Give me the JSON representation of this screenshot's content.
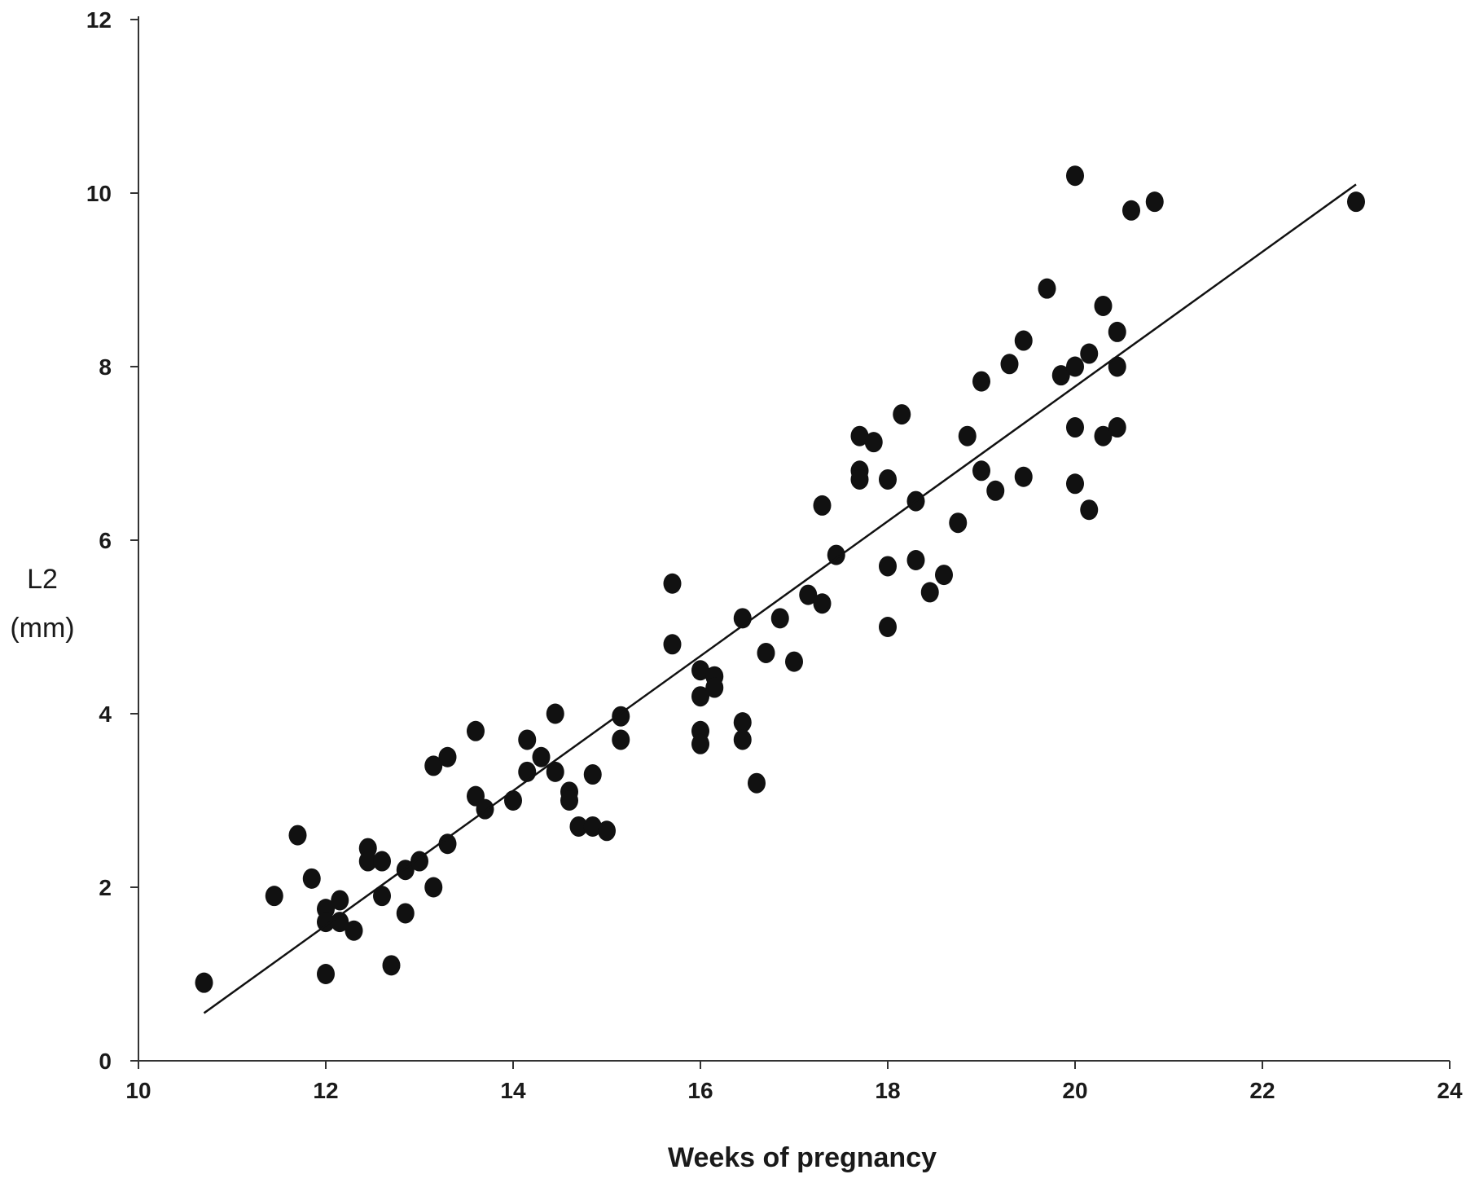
{
  "chart_data": {
    "type": "scatter",
    "title": "",
    "xlabel": "Weeks of pregnancy",
    "ylabel": [
      "L2",
      "(mm)"
    ],
    "xlim": [
      10,
      24
    ],
    "ylim": [
      0,
      12
    ],
    "xticks": [
      10,
      12,
      14,
      16,
      18,
      20,
      22,
      24
    ],
    "yticks": [
      0,
      2,
      4,
      6,
      8,
      10,
      12
    ],
    "grid": false,
    "legend": "none",
    "trendline": {
      "x": [
        10.7,
        23.0
      ],
      "y": [
        0.55,
        10.1
      ]
    },
    "points": [
      [
        10.7,
        0.9
      ],
      [
        11.45,
        1.9
      ],
      [
        11.7,
        2.6
      ],
      [
        11.85,
        2.1
      ],
      [
        12.0,
        1.75
      ],
      [
        12.0,
        1.6
      ],
      [
        12.0,
        1.0
      ],
      [
        12.15,
        1.85
      ],
      [
        12.15,
        1.6
      ],
      [
        12.3,
        1.5
      ],
      [
        12.45,
        2.45
      ],
      [
        12.45,
        2.3
      ],
      [
        12.6,
        2.3
      ],
      [
        12.6,
        1.9
      ],
      [
        12.7,
        1.1
      ],
      [
        12.85,
        2.2
      ],
      [
        12.85,
        1.7
      ],
      [
        13.0,
        2.3
      ],
      [
        13.15,
        3.4
      ],
      [
        13.15,
        2.0
      ],
      [
        13.3,
        3.5
      ],
      [
        13.3,
        2.5
      ],
      [
        13.6,
        3.8
      ],
      [
        13.6,
        3.05
      ],
      [
        13.7,
        2.9
      ],
      [
        14.0,
        3.0
      ],
      [
        14.15,
        3.7
      ],
      [
        14.15,
        3.33
      ],
      [
        14.3,
        3.5
      ],
      [
        14.45,
        4.0
      ],
      [
        14.45,
        3.33
      ],
      [
        14.6,
        3.1
      ],
      [
        14.6,
        3.0
      ],
      [
        14.7,
        2.7
      ],
      [
        14.85,
        3.3
      ],
      [
        14.85,
        2.7
      ],
      [
        15.0,
        2.65
      ],
      [
        15.15,
        3.97
      ],
      [
        15.15,
        3.7
      ],
      [
        15.7,
        5.5
      ],
      [
        15.7,
        4.8
      ],
      [
        16.0,
        4.5
      ],
      [
        16.0,
        4.2
      ],
      [
        16.0,
        3.8
      ],
      [
        16.0,
        3.65
      ],
      [
        16.15,
        4.43
      ],
      [
        16.15,
        4.3
      ],
      [
        16.45,
        5.1
      ],
      [
        16.45,
        3.9
      ],
      [
        16.45,
        3.7
      ],
      [
        16.6,
        3.2
      ],
      [
        16.7,
        4.7
      ],
      [
        16.85,
        5.1
      ],
      [
        17.0,
        4.6
      ],
      [
        17.15,
        5.37
      ],
      [
        17.3,
        6.4
      ],
      [
        17.3,
        5.27
      ],
      [
        17.45,
        5.83
      ],
      [
        17.7,
        7.2
      ],
      [
        17.7,
        6.8
      ],
      [
        17.7,
        6.7
      ],
      [
        17.85,
        7.13
      ],
      [
        18.0,
        6.7
      ],
      [
        18.0,
        5.7
      ],
      [
        18.0,
        5.0
      ],
      [
        18.15,
        7.45
      ],
      [
        18.3,
        6.45
      ],
      [
        18.3,
        5.77
      ],
      [
        18.45,
        5.4
      ],
      [
        18.6,
        5.6
      ],
      [
        18.75,
        6.2
      ],
      [
        18.85,
        7.2
      ],
      [
        19.0,
        7.83
      ],
      [
        19.0,
        6.8
      ],
      [
        19.15,
        6.57
      ],
      [
        19.3,
        8.03
      ],
      [
        19.45,
        8.3
      ],
      [
        19.45,
        6.73
      ],
      [
        19.7,
        8.9
      ],
      [
        19.85,
        7.9
      ],
      [
        20.0,
        10.2
      ],
      [
        20.0,
        8.0
      ],
      [
        20.0,
        7.3
      ],
      [
        20.0,
        6.65
      ],
      [
        20.15,
        8.15
      ],
      [
        20.15,
        6.35
      ],
      [
        20.3,
        8.7
      ],
      [
        20.3,
        7.2
      ],
      [
        20.45,
        8.4
      ],
      [
        20.45,
        8.0
      ],
      [
        20.45,
        7.3
      ],
      [
        20.6,
        9.8
      ],
      [
        20.85,
        9.9
      ],
      [
        23.0,
        9.9
      ]
    ]
  }
}
